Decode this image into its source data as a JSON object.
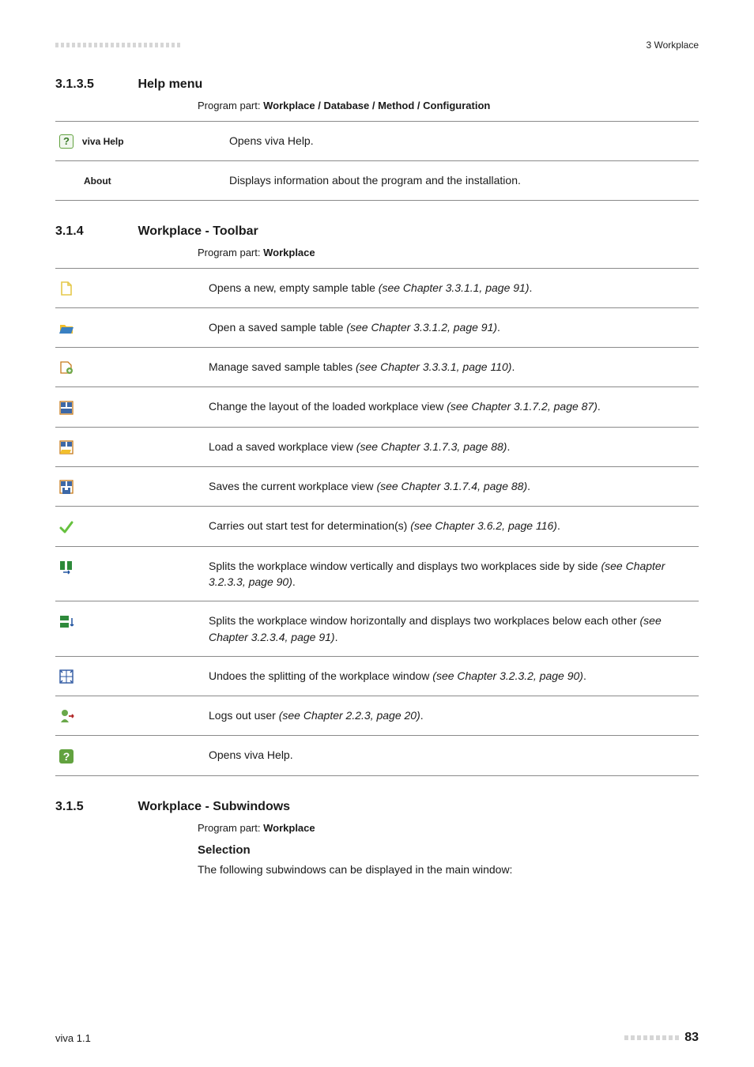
{
  "header": {
    "right": "3 Workplace"
  },
  "sec_help": {
    "number": "3.1.3.5",
    "title": "Help menu",
    "program_label": "Program part:",
    "program_value": "Workplace / Database / Method / Configuration",
    "rows": [
      {
        "id": "viva-help",
        "label": "viva Help",
        "icon": "ic-help-badge",
        "desc": "Opens viva Help."
      },
      {
        "id": "about",
        "label": "About",
        "icon": "",
        "desc": "Displays information about the program and the installation."
      }
    ]
  },
  "sec_toolbar": {
    "number": "3.1.4",
    "title": "Workplace - Toolbar",
    "program_label": "Program part:",
    "program_value": "Workplace",
    "rows": [
      {
        "icon": "ic-new",
        "desc_a": "Opens a new, empty sample table ",
        "desc_i": "(see Chapter 3.3.1.1, page 91)",
        "desc_b": "."
      },
      {
        "icon": "ic-open",
        "desc_a": "Open a saved sample table ",
        "desc_i": "(see Chapter 3.3.1.2, page 91)",
        "desc_b": "."
      },
      {
        "icon": "ic-manage",
        "desc_a": "Manage saved sample tables ",
        "desc_i": "(see Chapter 3.3.3.1, page 110)",
        "desc_b": "."
      },
      {
        "icon": "ic-layout",
        "desc_a": "Change the layout of the loaded workplace view ",
        "desc_i": "(see Chapter 3.1.7.2, page 87)",
        "desc_b": "."
      },
      {
        "icon": "ic-loadview",
        "desc_a": "Load a saved workplace view ",
        "desc_i": "(see Chapter 3.1.7.3, page 88)",
        "desc_b": "."
      },
      {
        "icon": "ic-saveview",
        "desc_a": "Saves the current workplace view ",
        "desc_i": "(see Chapter 3.1.7.4, page 88)",
        "desc_b": "."
      },
      {
        "icon": "ic-check",
        "desc_a": "Carries out start test for determination(s) ",
        "desc_i": "(see Chapter 3.6.2, page 116)",
        "desc_b": "."
      },
      {
        "icon": "ic-splitv",
        "desc_a": "Splits the workplace window vertically and displays two workplaces side by side ",
        "desc_i": "(see Chapter 3.2.3.3, page 90)",
        "desc_b": "."
      },
      {
        "icon": "ic-splith",
        "desc_a": "Splits the workplace window horizontally and displays two workplaces below each other ",
        "desc_i": "(see Chapter 3.2.3.4, page 91)",
        "desc_b": "."
      },
      {
        "icon": "ic-undo",
        "desc_a": "Undoes the splitting of the workplace window ",
        "desc_i": "(see Chapter 3.2.3.2, page 90)",
        "desc_b": "."
      },
      {
        "icon": "ic-logout",
        "desc_a": "Logs out user ",
        "desc_i": "(see Chapter 2.2.3, page 20)",
        "desc_b": "."
      },
      {
        "icon": "ic-help",
        "desc_a": "Opens viva Help.",
        "desc_i": "",
        "desc_b": ""
      }
    ]
  },
  "sec_subw": {
    "number": "3.1.5",
    "title": "Workplace - Subwindows",
    "program_label": "Program part:",
    "program_value": "Workplace",
    "subtitle": "Selection",
    "text": "The following subwindows can be displayed in the main window:"
  },
  "footer": {
    "left": "viva 1.1",
    "page": "83"
  },
  "colors": {
    "rule": "#8a8a8a",
    "help_green": "#62a23f",
    "check_green": "#66c13e",
    "new_yellow": "#e5c84a",
    "open_blue": "#3a80c2",
    "open_yellow": "#f2bf2d",
    "manage_green": "#6ea84a",
    "layout_fill": "#3d68a6",
    "layout_stroke": "#c67a1a",
    "split_green": "#2e8a3b",
    "split_arrow": "#2255a0",
    "undo_stroke": "#2a55a0",
    "logout_head": "#6aa84a",
    "logout_arrow": "#b22a2a"
  }
}
